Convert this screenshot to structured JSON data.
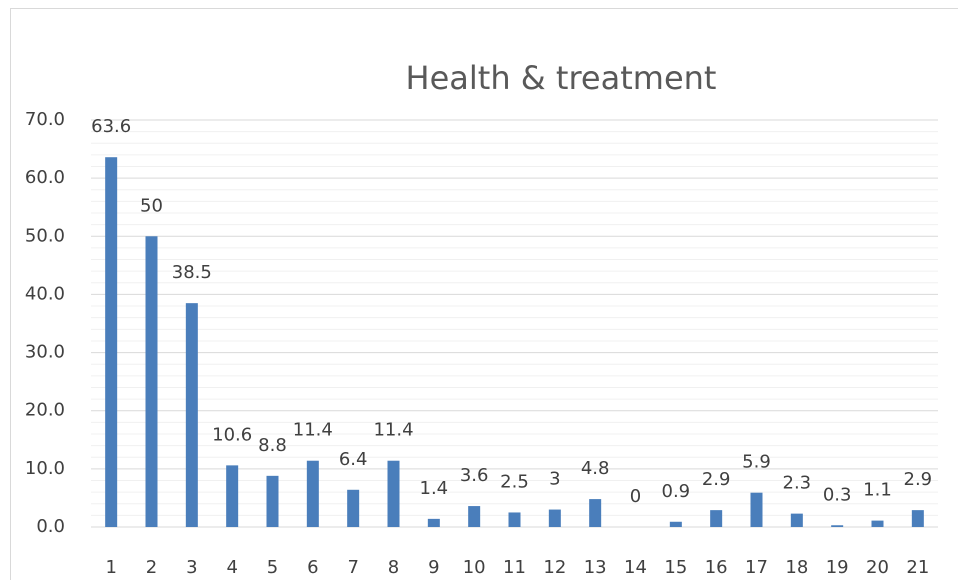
{
  "chart_data": {
    "type": "bar",
    "title": "Health & treatment",
    "categories": [
      "1",
      "2",
      "3",
      "4",
      "5",
      "6",
      "7",
      "8",
      "9",
      "10",
      "11",
      "12",
      "13",
      "14",
      "15",
      "16",
      "17",
      "18",
      "19",
      "20",
      "21"
    ],
    "values": [
      63.6,
      50,
      38.5,
      10.6,
      8.8,
      11.4,
      6.4,
      11.4,
      1.4,
      3.6,
      2.5,
      3,
      4.8,
      0,
      0.9,
      2.9,
      5.9,
      2.3,
      0.3,
      1.1,
      2.9
    ],
    "color": "#4a7ebb",
    "ylim": [
      0,
      70
    ],
    "yticks": [
      {
        "value": 0,
        "label": "0.0"
      },
      {
        "value": 10,
        "label": "10.0"
      },
      {
        "value": 20,
        "label": "20.0"
      },
      {
        "value": 30,
        "label": "30.0"
      },
      {
        "value": 40,
        "label": "40.0"
      },
      {
        "value": 50,
        "label": "50.0"
      },
      {
        "value": 60,
        "label": "60.0"
      },
      {
        "value": 70,
        "label": "70.0"
      }
    ],
    "yticks_minor": [
      2,
      4,
      6,
      8,
      12,
      14,
      16,
      18,
      22,
      24,
      26,
      28,
      32,
      34,
      36,
      38,
      42,
      44,
      46,
      48,
      52,
      54,
      56,
      58,
      62,
      64,
      66,
      68
    ],
    "grid": true
  }
}
